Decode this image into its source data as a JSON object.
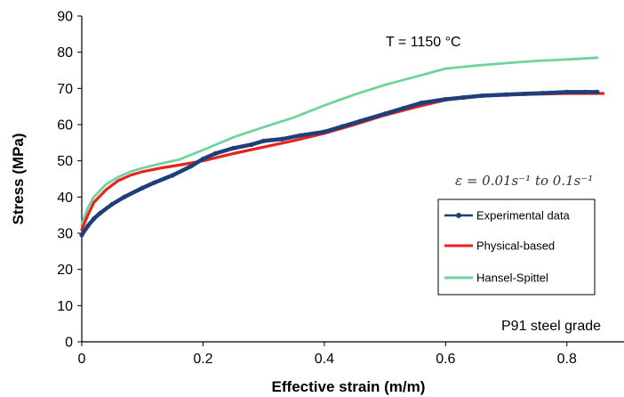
{
  "chart_data": {
    "type": "line",
    "xlabel": "Effective strain (m/m)",
    "ylabel": "Stress  (MPa)",
    "xlim": [
      0,
      0.9
    ],
    "ylim": [
      0,
      90
    ],
    "xticks": [
      0,
      0.2,
      0.4,
      0.6,
      0.8
    ],
    "xtick_labels": [
      "0",
      "0.2",
      "0.4",
      "0.6",
      "0.8"
    ],
    "yticks": [
      0,
      10,
      20,
      30,
      40,
      50,
      60,
      70,
      80,
      90
    ],
    "ytick_labels": [
      "0",
      "10",
      "20",
      "30",
      "40",
      "50",
      "60",
      "70",
      "80",
      "90"
    ],
    "grid": false,
    "legend_position": "right",
    "annotations": {
      "temperature": "T  =  1150 °C",
      "strain_rate": "ε = 0.01s⁻¹ to 0.1s⁻¹",
      "grade": "P91  steel  grade"
    },
    "series": [
      {
        "name": "Experimental data",
        "color": "#1f3f7a",
        "marker": "circle",
        "x": [
          0.0,
          0.01,
          0.02,
          0.03,
          0.05,
          0.07,
          0.1,
          0.12,
          0.15,
          0.18,
          0.2,
          0.22,
          0.25,
          0.28,
          0.3,
          0.33,
          0.36,
          0.4,
          0.43,
          0.46,
          0.5,
          0.53,
          0.56,
          0.6,
          0.63,
          0.66,
          0.7,
          0.73,
          0.76,
          0.8,
          0.83,
          0.85
        ],
        "y": [
          29.5,
          32.0,
          34.0,
          35.5,
          38.0,
          40.0,
          42.5,
          44.0,
          46.0,
          48.5,
          50.5,
          52.0,
          53.5,
          54.5,
          55.5,
          56.0,
          57.0,
          58.0,
          59.5,
          61.0,
          63.0,
          64.5,
          66.0,
          67.0,
          67.5,
          68.0,
          68.3,
          68.5,
          68.7,
          69.0,
          69.0,
          69.0
        ]
      },
      {
        "name": "Physical-based",
        "color": "#e8231d",
        "marker": "none",
        "x": [
          0.0,
          0.01,
          0.02,
          0.04,
          0.06,
          0.08,
          0.1,
          0.13,
          0.16,
          0.2,
          0.25,
          0.3,
          0.35,
          0.4,
          0.45,
          0.5,
          0.55,
          0.6,
          0.65,
          0.7,
          0.75,
          0.8,
          0.86
        ],
        "y": [
          31.0,
          35.0,
          38.5,
          42.0,
          44.5,
          46.0,
          47.0,
          48.0,
          48.8,
          50.0,
          52.0,
          53.8,
          55.6,
          57.6,
          60.0,
          62.6,
          64.8,
          66.8,
          67.8,
          68.2,
          68.4,
          68.6,
          68.6
        ]
      },
      {
        "name": "Hansel-Spittel",
        "color": "#6fd49b",
        "marker": "none",
        "x": [
          0.0,
          0.01,
          0.02,
          0.04,
          0.06,
          0.08,
          0.1,
          0.13,
          0.16,
          0.2,
          0.25,
          0.3,
          0.35,
          0.4,
          0.45,
          0.5,
          0.55,
          0.6,
          0.65,
          0.7,
          0.75,
          0.8,
          0.85
        ],
        "y": [
          32.5,
          37.0,
          40.0,
          43.5,
          45.5,
          47.0,
          48.0,
          49.2,
          50.3,
          53.0,
          56.5,
          59.3,
          62.0,
          65.3,
          68.3,
          71.0,
          73.2,
          75.5,
          76.3,
          77.0,
          77.6,
          78.0,
          78.5
        ]
      }
    ]
  }
}
